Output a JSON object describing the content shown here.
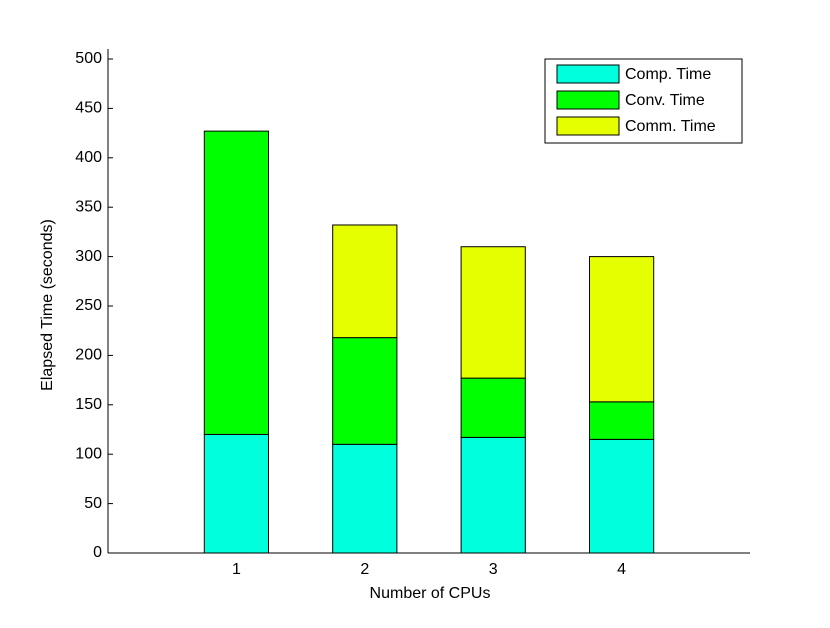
{
  "chart_data": {
    "type": "stacked-bar",
    "xlabel": "Number of CPUs",
    "ylabel": "Elapsed Time (seconds)",
    "categories": [
      "1",
      "2",
      "3",
      "4"
    ],
    "series": [
      {
        "name": "Comp. Time",
        "color": "#00ffdd",
        "values": [
          120,
          110,
          117,
          115
        ]
      },
      {
        "name": "Conv. Time",
        "color": "#00ff00",
        "values": [
          307,
          108,
          60,
          38
        ]
      },
      {
        "name": "Comm. Time",
        "color": "#e5ff00",
        "values": [
          0,
          114,
          133,
          147
        ]
      }
    ],
    "ylim": [
      0,
      500
    ],
    "yticks": [
      0,
      50,
      100,
      150,
      200,
      250,
      300,
      350,
      400,
      450,
      500
    ],
    "legend": "northeast"
  }
}
